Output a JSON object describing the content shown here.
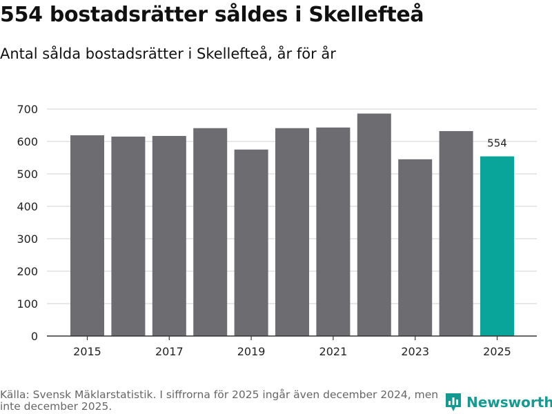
{
  "header": {
    "title": "554 bostadsrätter såldes i Skellefteå",
    "subtitle": "Antal sålda bostadsrätter i Skellefteå, år för år"
  },
  "footer": {
    "source": "Källa: Svensk Mäklarstatistik. I siffrorna för 2025 ingår även december 2024, men inte december 2025.",
    "brand": "Newsworthy",
    "brand_icon": "newsworthy-logo-icon"
  },
  "colors": {
    "bar": "#6d6c70",
    "highlight": "#0aa59a",
    "grid": "#d9d9d9",
    "brand": "#159a92"
  },
  "chart_data": {
    "type": "bar",
    "title": "554 bostadsrätter såldes i Skellefteå",
    "subtitle": "Antal sålda bostadsrätter i Skellefteå, år för år",
    "categories": [
      "2015",
      "2016",
      "2017",
      "2018",
      "2019",
      "2020",
      "2021",
      "2022",
      "2023",
      "2024",
      "2025"
    ],
    "values": [
      619,
      615,
      617,
      641,
      575,
      641,
      643,
      686,
      545,
      632,
      554
    ],
    "highlight_index": 10,
    "data_labels": [
      {
        "index": 10,
        "text": "554"
      }
    ],
    "xticks": [
      "2015",
      "2017",
      "2019",
      "2021",
      "2023",
      "2025"
    ],
    "yticks": [
      0,
      100,
      200,
      300,
      400,
      500,
      600,
      700
    ],
    "ylim": [
      0,
      700
    ],
    "xlabel": "",
    "ylabel": "",
    "grid": true
  }
}
